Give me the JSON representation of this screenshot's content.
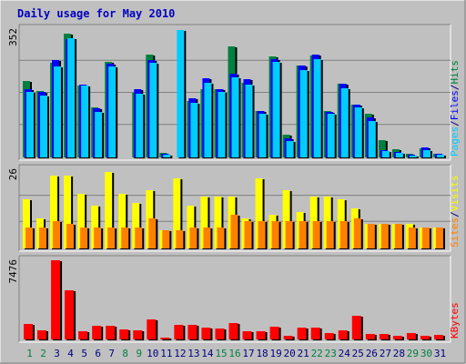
{
  "chart_data": {
    "type": "bar",
    "title": "Daily usage for May 2010",
    "categories": [
      "1",
      "2",
      "3",
      "4",
      "5",
      "6",
      "7",
      "8",
      "9",
      "10",
      "11",
      "12",
      "13",
      "14",
      "15",
      "16",
      "17",
      "18",
      "19",
      "20",
      "21",
      "22",
      "23",
      "24",
      "25",
      "26",
      "27",
      "28",
      "29",
      "30",
      "31"
    ],
    "weekend_days": [
      "1",
      "2",
      "8",
      "9",
      "15",
      "16",
      "22",
      "23",
      "29",
      "30"
    ],
    "panels": [
      {
        "id": "hits",
        "scale_label": "352",
        "ylim": [
          0,
          352
        ],
        "right_labels": [
          {
            "text": "Pages",
            "color": "#00ccff"
          },
          {
            "text": "/",
            "color": "#000080"
          },
          {
            "text": "Files",
            "color": "#0000ff"
          },
          {
            "text": "/",
            "color": "#000080"
          },
          {
            "text": "Hits",
            "color": "#008040"
          }
        ],
        "series": [
          {
            "name": "Hits",
            "color": "#008040",
            "values": [
              210,
              182,
              260,
              340,
              196,
              138,
              263,
              0,
              178,
              282,
              12,
              0,
              156,
              186,
              186,
              305,
              205,
              128,
              278,
              63,
              252,
              280,
              128,
              201,
              146,
              120,
              48,
              22,
              11,
              25,
              11
            ]
          },
          {
            "name": "Files",
            "color": "#0000ff",
            "values": [
              188,
              180,
              267,
              325,
              200,
              134,
              258,
              0,
              188,
              266,
              11,
              0,
              163,
              216,
              186,
              230,
              215,
              128,
              270,
              53,
              253,
              282,
              125,
              201,
              146,
              110,
              21,
              15,
              8,
              27,
              9
            ]
          },
          {
            "name": "Pages",
            "color": "#00ccff",
            "values": [
              180,
              171,
              250,
              326,
              196,
              125,
              250,
              0,
              175,
              260,
              8,
              349,
              150,
              204,
              180,
              220,
              200,
              119,
              261,
              45,
              240,
              270,
              120,
              190,
              137,
              100,
              17,
              12,
              6,
              20,
              7
            ]
          }
        ]
      },
      {
        "id": "visits",
        "scale_label": "26",
        "ylim": [
          0,
          26
        ],
        "right_labels": [
          {
            "text": "Sites",
            "color": "#ff8000"
          },
          {
            "text": "/",
            "color": "#000080"
          },
          {
            "text": "Visits",
            "color": "#ffff00"
          }
        ],
        "series": [
          {
            "name": "Visits",
            "color": "#ffff00",
            "values": [
              16,
              10,
              24,
              24,
              18,
              14,
              25,
              18,
              15,
              19,
              6,
              23,
              14,
              17,
              17,
              17,
              10,
              23,
              11,
              19,
              12,
              17,
              17,
              16,
              13,
              8,
              8,
              8,
              8,
              7,
              7
            ]
          },
          {
            "name": "Sites",
            "color": "#ff8000",
            "values": [
              7,
              7,
              9,
              8,
              7,
              7,
              7,
              7,
              7,
              10,
              6,
              6,
              7,
              7,
              7,
              11,
              9,
              9,
              9,
              9,
              9,
              9,
              9,
              9,
              10,
              8,
              8,
              8,
              7,
              7,
              7
            ]
          }
        ]
      },
      {
        "id": "kbytes",
        "scale_label": "7476",
        "ylim": [
          0,
          7476
        ],
        "right_labels": [
          {
            "text": "KBytes",
            "color": "#ff0000"
          }
        ],
        "series": [
          {
            "name": "KBytes",
            "color": "#ff0000",
            "values": [
              1480,
              890,
              7476,
              4600,
              790,
              1310,
              1280,
              980,
              850,
              1890,
              180,
              1350,
              1370,
              1150,
              1020,
              1530,
              770,
              740,
              1230,
              350,
              1080,
              1120,
              590,
              880,
              2200,
              520,
              490,
              330,
              580,
              370,
              470
            ]
          }
        ]
      }
    ],
    "grid": true
  }
}
